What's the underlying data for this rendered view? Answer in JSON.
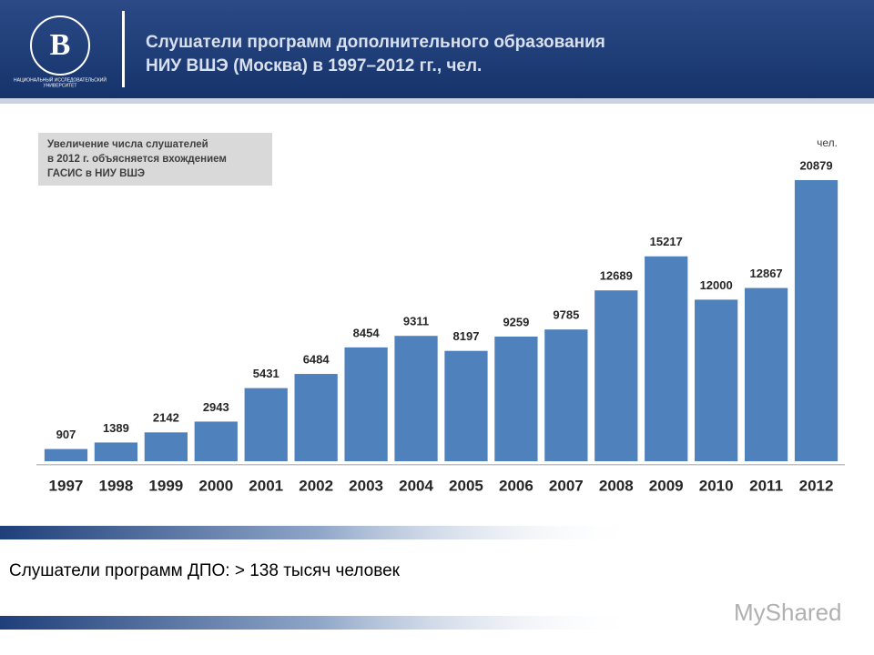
{
  "header": {
    "title_lines": [
      "Слушатели программ дополнительного образования",
      "НИУ ВШЭ (Москва) в 1997–2012 гг., чел."
    ],
    "logo_text": [
      "НАЦИОНАЛЬНЫЙ ИССЛЕДОВАТЕЛЬСКИЙ",
      "УНИВЕРСИТЕТ"
    ]
  },
  "chart_data": {
    "type": "bar",
    "unit": "чел.",
    "color": "#4f81bd",
    "note": [
      "Увеличение числа слушателей",
      "в 2012 г. объясняется вхождением",
      "ГАСИС в НИУ ВШЭ"
    ],
    "categories": [
      "1997",
      "1998",
      "1999",
      "2000",
      "2001",
      "2002",
      "2003",
      "2004",
      "2005",
      "2006",
      "2007",
      "2008",
      "2009",
      "2010",
      "2011",
      "2012"
    ],
    "values": [
      907,
      1389,
      2142,
      2943,
      5431,
      6484,
      8454,
      9311,
      8197,
      9259,
      9785,
      12689,
      15217,
      12000,
      12867,
      20879
    ]
  },
  "footer": {
    "text": "Слушатели программ ДПО: > 138 тысяч человек",
    "watermark": "MyShared"
  }
}
